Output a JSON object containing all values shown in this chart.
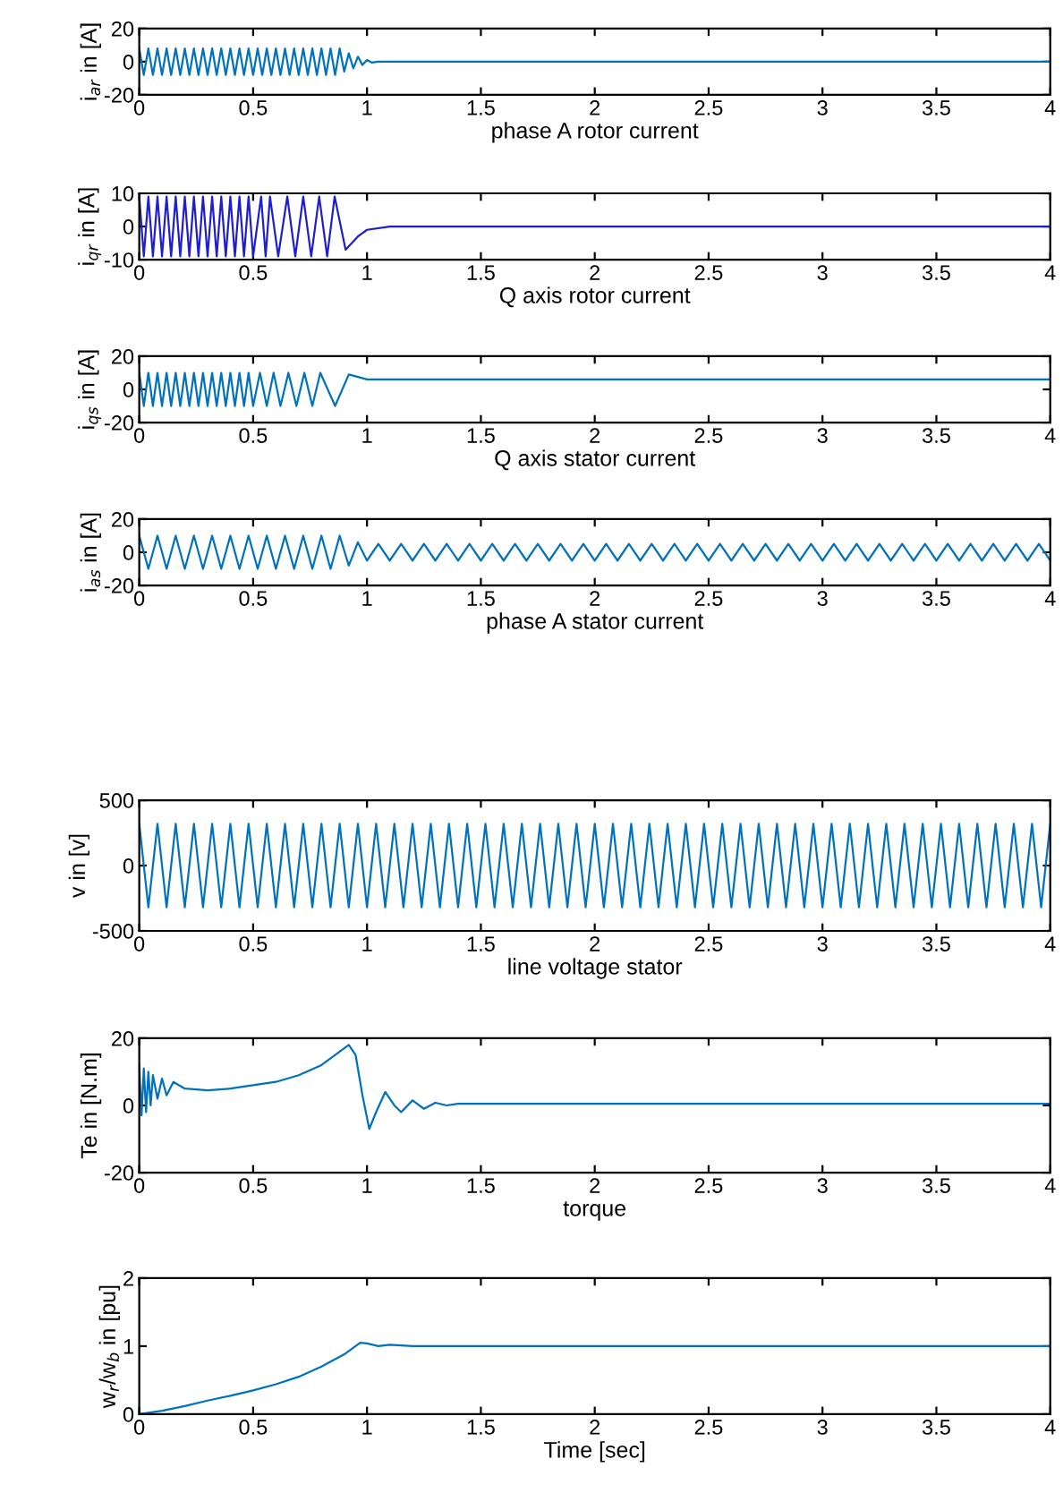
{
  "chart_data": [
    {
      "type": "line",
      "xlabel": "phase A rotor current",
      "ylabel": "i$_{ar}$ in [A]",
      "xlim": [
        0,
        4
      ],
      "xticks": [
        0,
        0.5,
        1,
        1.5,
        2,
        2.5,
        3,
        3.5,
        4
      ],
      "ylim": [
        -20,
        20
      ],
      "yticks": [
        -20,
        0,
        20
      ],
      "x": [
        0,
        0.02,
        0.04,
        0.06,
        0.08,
        0.1,
        0.12,
        0.14,
        0.16,
        0.18,
        0.2,
        0.22,
        0.24,
        0.26,
        0.28,
        0.3,
        0.32,
        0.34,
        0.36,
        0.38,
        0.4,
        0.42,
        0.44,
        0.46,
        0.48,
        0.5,
        0.52,
        0.54,
        0.56,
        0.58,
        0.6,
        0.62,
        0.64,
        0.66,
        0.68,
        0.7,
        0.72,
        0.74,
        0.76,
        0.78,
        0.8,
        0.82,
        0.84,
        0.86,
        0.88,
        0.9,
        0.92,
        0.94,
        0.96,
        0.98,
        1.0,
        1.02,
        1.05,
        4
      ],
      "series": [
        {
          "color": "#0072bd",
          "values": [
            8,
            -8,
            8,
            -8,
            8,
            -8,
            8,
            -8,
            8,
            -8,
            8,
            -8,
            8,
            -8,
            8,
            -8,
            8,
            -8,
            8,
            -8,
            8,
            -8,
            8,
            -8,
            8,
            -8,
            8,
            -8,
            8,
            -8,
            8,
            -8,
            8,
            -8,
            8,
            -8,
            8,
            -8,
            8,
            -8,
            8,
            -8,
            8,
            -8,
            8,
            -6,
            5,
            -4,
            3,
            -2,
            1,
            -0.5,
            0,
            0
          ]
        }
      ]
    },
    {
      "type": "line",
      "xlabel": "Q axis rotor current",
      "ylabel": "i$_{qr}$ in [A]",
      "xlim": [
        0,
        4
      ],
      "xticks": [
        0,
        0.5,
        1,
        1.5,
        2,
        2.5,
        3,
        3.5,
        4
      ],
      "ylim": [
        -10,
        10
      ],
      "yticks": [
        -10,
        0,
        10
      ],
      "x": [
        0,
        0.02,
        0.04,
        0.06,
        0.08,
        0.1,
        0.12,
        0.14,
        0.16,
        0.18,
        0.2,
        0.22,
        0.24,
        0.26,
        0.28,
        0.3,
        0.32,
        0.34,
        0.36,
        0.38,
        0.4,
        0.42,
        0.44,
        0.46,
        0.48,
        0.5,
        0.535,
        0.555,
        0.574,
        0.61,
        0.65,
        0.685,
        0.72,
        0.755,
        0.79,
        0.825,
        0.858,
        0.906,
        0.96,
        1.0,
        1.1,
        1.2,
        4
      ],
      "series": [
        {
          "color": "#1f1fd0",
          "values": [
            9,
            -9,
            9,
            -9,
            9,
            -9,
            9,
            -9,
            9,
            -9,
            9,
            -9,
            9,
            -9,
            9,
            -9,
            9,
            -9,
            9,
            -9,
            9,
            -9,
            9,
            -9,
            9,
            -9,
            9,
            -9,
            9,
            -9,
            9,
            -9,
            9,
            -9,
            9,
            -9,
            9,
            -7,
            -3,
            -1,
            0,
            0,
            0
          ]
        }
      ]
    },
    {
      "type": "line",
      "xlabel": "Q axis stator current",
      "ylabel": "i$_{qs}$ in [A]",
      "xlim": [
        0,
        4
      ],
      "xticks": [
        0,
        0.5,
        1,
        1.5,
        2,
        2.5,
        3,
        3.5,
        4
      ],
      "ylim": [
        -20,
        20
      ],
      "yticks": [
        -20,
        0,
        20
      ],
      "x": [
        0,
        0.02,
        0.04,
        0.06,
        0.08,
        0.1,
        0.12,
        0.14,
        0.16,
        0.18,
        0.2,
        0.22,
        0.24,
        0.26,
        0.28,
        0.3,
        0.32,
        0.34,
        0.36,
        0.38,
        0.4,
        0.42,
        0.44,
        0.46,
        0.48,
        0.5,
        0.53,
        0.56,
        0.59,
        0.62,
        0.655,
        0.69,
        0.725,
        0.76,
        0.795,
        0.86,
        0.92,
        1.0,
        4
      ],
      "series": [
        {
          "color": "#0072bd",
          "values": [
            10,
            -10,
            10,
            -10,
            10,
            -10,
            10,
            -10,
            10,
            -10,
            10,
            -10,
            10,
            -10,
            10,
            -10,
            10,
            -10,
            10,
            -10,
            10,
            -10,
            10,
            -10,
            10,
            -10,
            10,
            -10,
            10,
            -10,
            10,
            -10,
            10,
            -10,
            10,
            -10,
            9,
            6,
            6
          ]
        }
      ]
    },
    {
      "type": "line",
      "xlabel": "phase A stator current",
      "ylabel": "i$_{as}$ in [A]",
      "xlim": [
        0,
        4
      ],
      "xticks": [
        0,
        0.5,
        1,
        1.5,
        2,
        2.5,
        3,
        3.5,
        4
      ],
      "ylim": [
        -20,
        20
      ],
      "yticks": [
        -20,
        0,
        20
      ],
      "x": [
        0,
        0.04,
        0.08,
        0.12,
        0.16,
        0.2,
        0.24,
        0.28,
        0.32,
        0.36,
        0.4,
        0.44,
        0.48,
        0.52,
        0.56,
        0.6,
        0.64,
        0.68,
        0.72,
        0.76,
        0.8,
        0.84,
        0.88,
        0.92,
        0.96,
        1.0,
        1.05,
        1.1,
        1.15,
        1.2,
        1.25,
        1.3,
        1.35,
        1.4,
        1.45,
        1.5,
        1.55,
        1.6,
        1.65,
        1.7,
        1.75,
        1.8,
        1.85,
        1.9,
        1.95,
        2,
        2.05,
        2.1,
        2.15,
        2.2,
        2.25,
        2.3,
        2.35,
        2.4,
        2.45,
        2.5,
        2.55,
        2.6,
        2.65,
        2.7,
        2.75,
        2.8,
        2.85,
        2.9,
        2.95,
        3,
        3.05,
        3.1,
        3.15,
        3.2,
        3.25,
        3.3,
        3.35,
        3.4,
        3.45,
        3.5,
        3.55,
        3.6,
        3.65,
        3.7,
        3.75,
        3.8,
        3.85,
        3.9,
        3.95,
        4
      ],
      "series": [
        {
          "color": "#0072bd",
          "values": [
            10,
            -10,
            10,
            -10,
            10,
            -10,
            10,
            -10,
            10,
            -10,
            10,
            -10,
            10,
            -10,
            10,
            -10,
            10,
            -10,
            10,
            -10,
            10,
            -10,
            10,
            -8,
            6,
            -5,
            5,
            -5,
            5,
            -5,
            5,
            -5,
            5,
            -5,
            5,
            -5,
            5,
            -5,
            5,
            -5,
            5,
            -5,
            5,
            -5,
            5,
            -5,
            5,
            -5,
            5,
            -5,
            5,
            -5,
            5,
            -5,
            5,
            -5,
            5,
            -5,
            5,
            -5,
            5,
            -5,
            5,
            -5,
            5,
            -5,
            5,
            -5,
            5,
            -5,
            5,
            -5,
            5,
            -5,
            5,
            -5,
            5,
            -5,
            5,
            -5,
            5,
            -5,
            5,
            -5,
            5,
            -5
          ]
        }
      ]
    },
    {
      "type": "line",
      "xlabel": "line voltage stator",
      "ylabel": "v in [v]",
      "xlim": [
        0,
        4
      ],
      "xticks": [
        0,
        0.5,
        1,
        1.5,
        2,
        2.5,
        3,
        3.5,
        4
      ],
      "ylim": [
        -500,
        500
      ],
      "yticks": [
        -500,
        0,
        500
      ],
      "x": [
        0,
        0.04,
        0.08,
        0.12,
        0.16,
        0.2,
        0.24,
        0.28,
        0.32,
        0.36,
        0.4,
        0.44,
        0.48,
        0.52,
        0.56,
        0.6,
        0.64,
        0.68,
        0.72,
        0.76,
        0.8,
        0.84,
        0.88,
        0.92,
        0.96,
        1,
        1.04,
        1.08,
        1.12,
        1.16,
        1.2,
        1.24,
        1.28,
        1.32,
        1.36,
        1.4,
        1.44,
        1.48,
        1.52,
        1.56,
        1.6,
        1.64,
        1.68,
        1.72,
        1.76,
        1.8,
        1.84,
        1.88,
        1.92,
        1.96,
        2,
        2.04,
        2.08,
        2.12,
        2.16,
        2.2,
        2.24,
        2.28,
        2.32,
        2.36,
        2.4,
        2.44,
        2.48,
        2.52,
        2.56,
        2.6,
        2.64,
        2.68,
        2.72,
        2.76,
        2.8,
        2.84,
        2.88,
        2.92,
        2.96,
        3,
        3.04,
        3.08,
        3.12,
        3.16,
        3.2,
        3.24,
        3.28,
        3.32,
        3.36,
        3.4,
        3.44,
        3.48,
        3.52,
        3.56,
        3.6,
        3.64,
        3.68,
        3.72,
        3.76,
        3.8,
        3.84,
        3.88,
        3.92,
        3.96,
        4
      ],
      "series": [
        {
          "color": "#0072bd",
          "values": [
            320,
            -320,
            320,
            -320,
            320,
            -320,
            320,
            -320,
            320,
            -320,
            320,
            -320,
            320,
            -320,
            320,
            -320,
            320,
            -320,
            320,
            -320,
            320,
            -320,
            320,
            -320,
            320,
            -320,
            320,
            -320,
            320,
            -320,
            320,
            -320,
            320,
            -320,
            320,
            -320,
            320,
            -320,
            320,
            -320,
            320,
            -320,
            320,
            -320,
            320,
            -320,
            320,
            -320,
            320,
            -320,
            320,
            -320,
            320,
            -320,
            320,
            -320,
            320,
            -320,
            320,
            -320,
            320,
            -320,
            320,
            -320,
            320,
            -320,
            320,
            -320,
            320,
            -320,
            320,
            -320,
            320,
            -320,
            320,
            -320,
            320,
            -320,
            320,
            -320,
            320,
            -320,
            320,
            -320,
            320,
            -320,
            320,
            -320,
            320,
            -320,
            320,
            -320,
            320,
            -320,
            320,
            -320,
            320,
            -320,
            320,
            -320,
            320
          ]
        }
      ]
    },
    {
      "type": "line",
      "xlabel": "torque",
      "ylabel": "Te in [N.m]",
      "xlim": [
        0,
        4
      ],
      "xticks": [
        0,
        0.5,
        1,
        1.5,
        2,
        2.5,
        3,
        3.5,
        4
      ],
      "ylim": [
        -20,
        20
      ],
      "yticks": [
        -20,
        0,
        20
      ],
      "x": [
        0,
        0.01,
        0.02,
        0.03,
        0.04,
        0.05,
        0.06,
        0.08,
        0.1,
        0.12,
        0.15,
        0.2,
        0.3,
        0.4,
        0.5,
        0.6,
        0.7,
        0.8,
        0.88,
        0.92,
        0.95,
        0.98,
        1.01,
        1.04,
        1.08,
        1.12,
        1.15,
        1.2,
        1.25,
        1.3,
        1.35,
        1.4,
        4
      ],
      "series": [
        {
          "color": "#0072bd",
          "values": [
            12,
            -3,
            11,
            -2,
            10,
            0,
            9,
            2,
            8,
            3,
            7,
            5,
            4.5,
            5,
            6,
            7,
            9,
            12,
            16,
            18,
            15,
            3,
            -7,
            -2,
            4,
            0,
            -2,
            1.5,
            -1,
            0.8,
            0,
            0.5,
            0.5
          ]
        }
      ]
    },
    {
      "type": "line",
      "xlabel": "Time [sec]",
      "ylabel": "w$_{r}$/w$_{b}$ in [pu]",
      "xlim": [
        0,
        4
      ],
      "xticks": [
        0,
        0.5,
        1,
        1.5,
        2,
        2.5,
        3,
        3.5,
        4
      ],
      "ylim": [
        0,
        2
      ],
      "yticks": [
        0,
        1,
        2
      ],
      "x": [
        0,
        0.1,
        0.2,
        0.3,
        0.4,
        0.5,
        0.6,
        0.7,
        0.8,
        0.9,
        0.97,
        1.0,
        1.05,
        1.1,
        1.2,
        4
      ],
      "series": [
        {
          "color": "#0072bd",
          "values": [
            0,
            0.05,
            0.12,
            0.2,
            0.27,
            0.35,
            0.44,
            0.55,
            0.7,
            0.88,
            1.05,
            1.04,
            1.0,
            1.02,
            1.0,
            1.0
          ]
        }
      ]
    }
  ]
}
